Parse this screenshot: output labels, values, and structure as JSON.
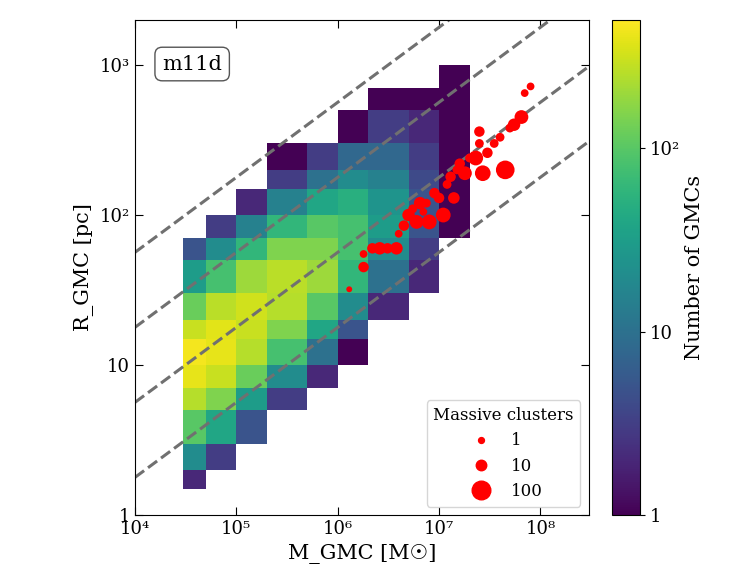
{
  "chart_data": {
    "type": "heatmap",
    "annotation": "m11d",
    "xlabel": "M_GMC [M☉]",
    "ylabel": "R_GMC [pc]",
    "log": true,
    "grid": false,
    "xlim": [
      10000,
      300000000
    ],
    "ylim": [
      1,
      2000
    ],
    "xticks": [
      {
        "value": 10000,
        "label": "10⁴"
      },
      {
        "value": 100000,
        "label": "10⁵"
      },
      {
        "value": 1000000,
        "label": "10⁶"
      },
      {
        "value": 10000000,
        "label": "10⁷"
      },
      {
        "value": 100000000,
        "label": "10⁸"
      }
    ],
    "yticks": [
      1,
      10,
      {
        "value": 100,
        "label": "10²"
      },
      {
        "value": 1000,
        "label": "10³"
      }
    ],
    "x_edges": [
      30000,
      50000,
      100000,
      200000,
      500000,
      1000000,
      2000000,
      5000000,
      10000000,
      20000000,
      50000000,
      100000000
    ],
    "y_edges": [
      1.5,
      2,
      3,
      5,
      7,
      10,
      15,
      20,
      30,
      50,
      70,
      100,
      150,
      200,
      300,
      500,
      700,
      1000
    ],
    "cells": [
      [
        2,
        null,
        null,
        null,
        null,
        null,
        null,
        null,
        null,
        null,
        null
      ],
      [
        20,
        3,
        null,
        null,
        null,
        null,
        null,
        null,
        null,
        null,
        null
      ],
      [
        100,
        40,
        5,
        null,
        null,
        null,
        null,
        null,
        null,
        null,
        null
      ],
      [
        250,
        150,
        30,
        3,
        null,
        null,
        null,
        null,
        null,
        null,
        null
      ],
      [
        400,
        300,
        120,
        20,
        2,
        null,
        null,
        null,
        null,
        null,
        null
      ],
      [
        450,
        400,
        250,
        80,
        10,
        1,
        null,
        null,
        null,
        null,
        null
      ],
      [
        300,
        380,
        300,
        150,
        40,
        5,
        null,
        null,
        null,
        null,
        null
      ],
      [
        120,
        260,
        320,
        250,
        100,
        20,
        2,
        null,
        null,
        null,
        null
      ],
      [
        30,
        80,
        200,
        260,
        200,
        60,
        10,
        2,
        null,
        null,
        null
      ],
      [
        5,
        20,
        60,
        150,
        150,
        80,
        20,
        3,
        null,
        null,
        null
      ],
      [
        null,
        3,
        15,
        60,
        100,
        80,
        30,
        5,
        1,
        null,
        null
      ],
      [
        null,
        null,
        2,
        15,
        40,
        50,
        25,
        5,
        1,
        null,
        null
      ],
      [
        null,
        null,
        null,
        3,
        10,
        20,
        15,
        4,
        1,
        null,
        null
      ],
      [
        null,
        null,
        null,
        1,
        3,
        8,
        8,
        3,
        1,
        null,
        null
      ],
      [
        null,
        null,
        null,
        null,
        null,
        1,
        3,
        2,
        1,
        null,
        null
      ],
      [
        null,
        null,
        null,
        null,
        null,
        null,
        1,
        1,
        1,
        null,
        null
      ],
      [
        null,
        null,
        null,
        null,
        null,
        null,
        null,
        null,
        1,
        null,
        null
      ]
    ],
    "colorbar": {
      "label": "Number of GMCs",
      "lim": [
        1,
        500
      ],
      "ticks": [
        1,
        10,
        {
          "value": 100,
          "label": "10²"
        }
      ]
    },
    "reference_lines": {
      "surface_density": [
        1,
        10,
        100,
        1000
      ],
      "color": "#707070",
      "line_style": "dashed"
    },
    "legend": "lower right",
    "legend_sizes": [
      1,
      10,
      100
    ],
    "series": [
      {
        "name": "Massive clusters",
        "type": "scatter",
        "color": "#ff0000",
        "marker": "o",
        "x": [
          1300000,
          1800000,
          1800000,
          2200000,
          2600000,
          3100000,
          3800000,
          4000000,
          4500000,
          5000000,
          5500000,
          6000000,
          6500000,
          7000000,
          7500000,
          8000000,
          9000000,
          10000000,
          11000000,
          12000000,
          13000000,
          14000000,
          15000000,
          16000000,
          18000000,
          20000000,
          23000000,
          25000000,
          25000000,
          27000000,
          30000000,
          35000000,
          40000000,
          45000000,
          50000000,
          55000000,
          65000000,
          70000000,
          80000000
        ],
        "y": [
          32,
          45,
          55,
          60,
          60,
          60,
          60,
          75,
          85,
          100,
          110,
          90,
          120,
          105,
          120,
          90,
          140,
          130,
          100,
          160,
          180,
          130,
          200,
          220,
          190,
          240,
          240,
          300,
          360,
          190,
          260,
          300,
          330,
          200,
          380,
          400,
          450,
          650,
          720
        ],
        "sizes": [
          1,
          10,
          3,
          10,
          20,
          10,
          20,
          3,
          10,
          20,
          5,
          30,
          20,
          3,
          5,
          40,
          10,
          10,
          40,
          5,
          10,
          15,
          5,
          10,
          30,
          5,
          40,
          5,
          10,
          50,
          10,
          5,
          5,
          100,
          5,
          20,
          30,
          3,
          3
        ]
      }
    ]
  }
}
